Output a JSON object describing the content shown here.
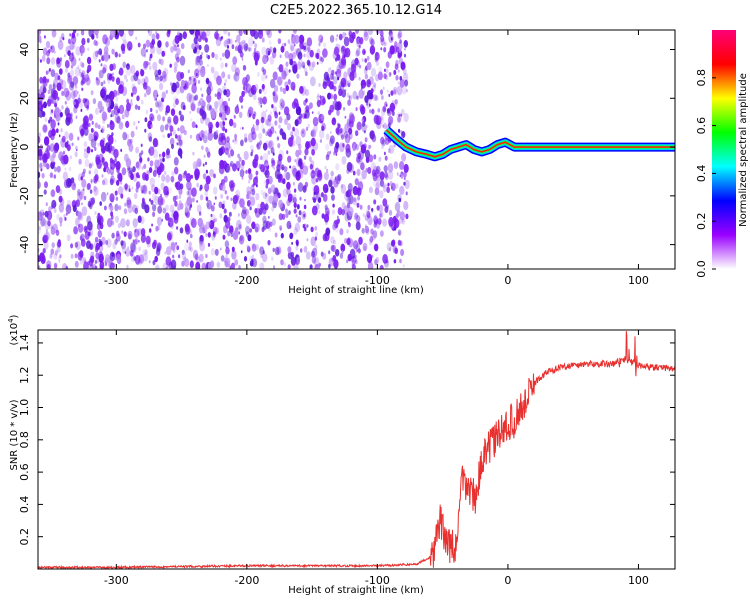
{
  "title": "C2E5.2022.365.10.12.G14",
  "chart_data": [
    {
      "type": "heatmap",
      "xlabel": "Height of straight line (km)",
      "ylabel": "Frequency (Hz)",
      "xlim": [
        -360,
        128
      ],
      "ylim": [
        -50,
        48
      ],
      "xticks": [
        -300,
        -200,
        -100,
        0,
        100
      ],
      "yticks": [
        40,
        20,
        0,
        -20,
        -40
      ],
      "colorbar": {
        "label": "Normalized spectral amplitude",
        "range": [
          0,
          1
        ],
        "ticks": [
          "0.0",
          "0.2",
          "0.4",
          "0.6",
          "0.8"
        ],
        "colormap": [
          "#ffffff",
          "#9900ff",
          "#0000ff",
          "#00ffff",
          "#00ff00",
          "#ffff00",
          "#ff0000",
          "#ff0077"
        ]
      },
      "noise_region": {
        "x": [
          -360,
          -77
        ],
        "description_color": "#7a1cf0"
      },
      "signal_trace": {
        "x": [
          -93,
          -85,
          -78,
          -70,
          -62,
          -56,
          -50,
          -44,
          -38,
          -32,
          -26,
          -20,
          -14,
          -8,
          -2,
          5,
          128
        ],
        "y": [
          7,
          3,
          0,
          -2,
          -3,
          -4,
          -3,
          -1,
          0,
          1,
          -1,
          -2,
          -1,
          1,
          2,
          0,
          0
        ]
      }
    },
    {
      "type": "line",
      "xlabel": "Height of straight line (km)",
      "ylabel": "SNR (10 * v/v)",
      "y_multiplier": "(x10",
      "y_multiplier_exp": "4",
      "y_multiplier_close": ")",
      "xlim": [
        -360,
        128
      ],
      "ylim": [
        0,
        1.48
      ],
      "xticks": [
        -300,
        -200,
        -100,
        0,
        100
      ],
      "yticks": [
        0.2,
        0.4,
        0.6,
        0.8,
        1.0,
        1.2,
        1.4
      ],
      "series": [
        {
          "color": "#e8302e",
          "x": [
            -360,
            -300,
            -200,
            -130,
            -100,
            -70,
            -58,
            -52,
            -46,
            -40,
            -35,
            -30,
            -25,
            -20,
            -15,
            -10,
            -5,
            0,
            5,
            10,
            15,
            20,
            30,
            40,
            60,
            80,
            90,
            100,
            110,
            128
          ],
          "y": [
            0.01,
            0.01,
            0.02,
            0.02,
            0.02,
            0.03,
            0.08,
            0.3,
            0.15,
            0.12,
            0.55,
            0.5,
            0.45,
            0.65,
            0.75,
            0.8,
            0.85,
            0.9,
            0.92,
            1.0,
            1.05,
            1.15,
            1.22,
            1.25,
            1.27,
            1.27,
            1.3,
            1.26,
            1.25,
            1.24
          ]
        }
      ]
    }
  ]
}
